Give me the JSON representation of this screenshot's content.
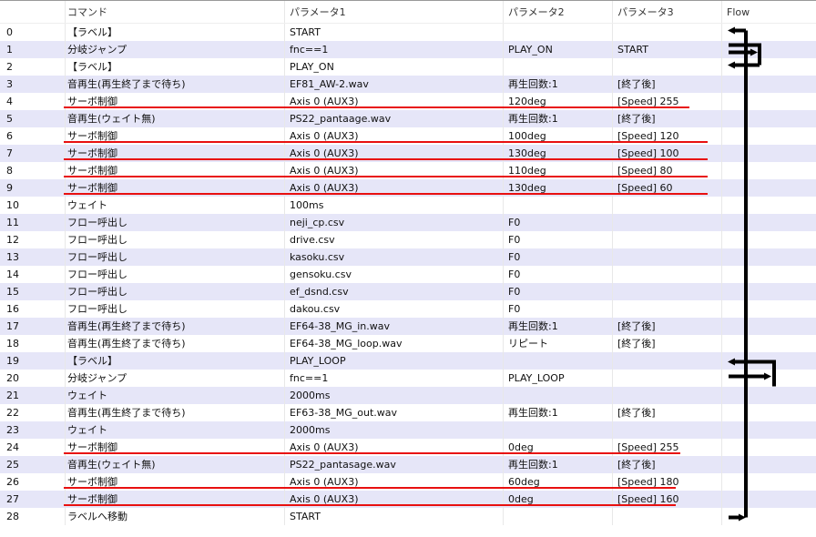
{
  "columns": [
    "",
    "コマンド",
    "パラメータ1",
    "パラメータ2",
    "パラメータ3",
    "Flow"
  ],
  "rows": [
    [
      "0",
      "【ラベル】",
      "START",
      "",
      ""
    ],
    [
      "1",
      "分岐ジャンプ",
      "fnc==1",
      "PLAY_ON",
      "START"
    ],
    [
      "2",
      "【ラベル】",
      "PLAY_ON",
      "",
      ""
    ],
    [
      "3",
      "音再生(再生終了まで待ち)",
      "EF81_AW-2.wav",
      "再生回数:1",
      "[終了後]"
    ],
    [
      "4",
      "サーボ制御",
      "Axis 0 (AUX3)",
      "120deg",
      "[Speed] 255"
    ],
    [
      "5",
      "音再生(ウェイト無)",
      "PS22_pantaage.wav",
      "再生回数:1",
      "[終了後]"
    ],
    [
      "6",
      "サーボ制御",
      "Axis 0 (AUX3)",
      "100deg",
      "[Speed] 120"
    ],
    [
      "7",
      "サーボ制御",
      "Axis 0 (AUX3)",
      "130deg",
      "[Speed] 100"
    ],
    [
      "8",
      "サーボ制御",
      "Axis 0 (AUX3)",
      "110deg",
      "[Speed] 80"
    ],
    [
      "9",
      "サーボ制御",
      "Axis 0 (AUX3)",
      "130deg",
      "[Speed] 60"
    ],
    [
      "10",
      "ウェイト",
      "100ms",
      "",
      ""
    ],
    [
      "11",
      "フロー呼出し",
      "neji_cp.csv",
      "F0",
      ""
    ],
    [
      "12",
      "フロー呼出し",
      "drive.csv",
      "F0",
      ""
    ],
    [
      "13",
      "フロー呼出し",
      "kasoku.csv",
      "F0",
      ""
    ],
    [
      "14",
      "フロー呼出し",
      "gensoku.csv",
      "F0",
      ""
    ],
    [
      "15",
      "フロー呼出し",
      "ef_dsnd.csv",
      "F0",
      ""
    ],
    [
      "16",
      "フロー呼出し",
      "dakou.csv",
      "F0",
      ""
    ],
    [
      "17",
      "音再生(再生終了まで待ち)",
      "EF64-38_MG_in.wav",
      "再生回数:1",
      "[終了後]"
    ],
    [
      "18",
      "音再生(再生終了まで待ち)",
      "EF64-38_MG_loop.wav",
      "リピート",
      "[終了後]"
    ],
    [
      "19",
      "【ラベル】",
      "PLAY_LOOP",
      "",
      ""
    ],
    [
      "20",
      "分岐ジャンプ",
      "fnc==1",
      "PLAY_LOOP",
      ""
    ],
    [
      "21",
      "ウェイト",
      "2000ms",
      "",
      ""
    ],
    [
      "22",
      "音再生(再生終了まで待ち)",
      "EF63-38_MG_out.wav",
      "再生回数:1",
      "[終了後]"
    ],
    [
      "23",
      "ウェイト",
      "2000ms",
      "",
      ""
    ],
    [
      "24",
      "サーボ制御",
      "Axis 0 (AUX3)",
      "0deg",
      "[Speed] 255"
    ],
    [
      "25",
      "音再生(ウェイト無)",
      "PS22_pantasage.wav",
      "再生回数:1",
      "[終了後]"
    ],
    [
      "26",
      "サーボ制御",
      "Axis 0 (AUX3)",
      "60deg",
      "[Speed] 180"
    ],
    [
      "27",
      "サーボ制御",
      "Axis 0 (AUX3)",
      "0deg",
      "[Speed] 160"
    ],
    [
      "28",
      "ラベルへ移動",
      "START",
      "",
      ""
    ]
  ],
  "highlighted_rows": [
    4,
    6,
    7,
    8,
    9,
    24,
    26,
    27
  ],
  "colors": {
    "row_alt": "#e6e6f8",
    "highlight_underline": "#e81010",
    "flow": "#000000"
  }
}
